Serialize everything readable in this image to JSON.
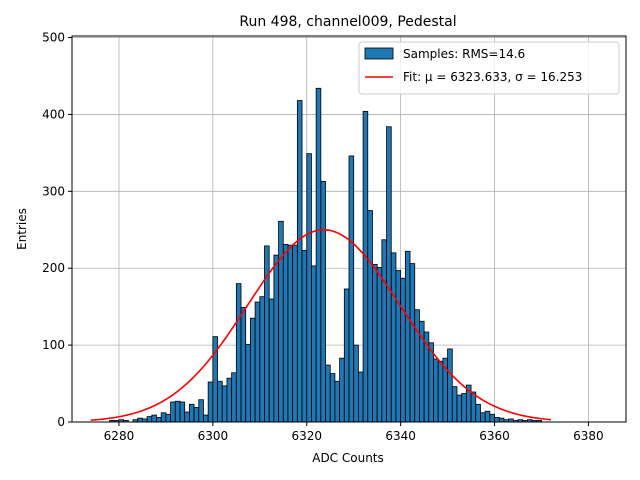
{
  "chart_data": {
    "type": "bar",
    "title": "Run 498, channel009, Pedestal",
    "xlabel": "ADC Counts",
    "ylabel": "Entries",
    "xlim": [
      6270,
      6388
    ],
    "ylim": [
      0,
      502
    ],
    "xticks": [
      6280,
      6300,
      6320,
      6340,
      6360,
      6380
    ],
    "yticks": [
      0,
      100,
      200,
      300,
      400,
      500
    ],
    "grid": true,
    "legend_position": "top-right",
    "bin_start": 6274,
    "bin_width": 1,
    "counts": [
      0,
      0,
      0,
      0,
      2,
      2,
      3,
      2,
      0,
      3,
      5,
      4,
      7,
      9,
      6,
      12,
      10,
      26,
      27,
      26,
      13,
      23,
      19,
      29,
      9,
      52,
      111,
      53,
      47,
      57,
      64,
      180,
      149,
      101,
      135,
      156,
      163,
      229,
      160,
      217,
      261,
      231,
      230,
      230,
      418,
      223,
      349,
      203,
      434,
      313,
      74,
      63,
      53,
      83,
      173,
      346,
      100,
      65,
      404,
      275,
      205,
      201,
      237,
      384,
      220,
      197,
      187,
      222,
      206,
      146,
      131,
      117,
      103,
      82,
      79,
      83,
      95,
      46,
      35,
      37,
      48,
      39,
      23,
      12,
      14,
      10,
      6,
      5,
      3,
      4,
      2,
      3,
      2,
      3,
      2,
      2
    ],
    "fit": {
      "mu": 6323.633,
      "sigma": 16.253,
      "amplitude": 250,
      "x_range": [
        6274,
        6372
      ]
    },
    "series": [
      {
        "name": "Samples: RMS=14.6",
        "kind": "histogram",
        "color": "#1f77b4",
        "edge": "#000000"
      },
      {
        "name": "Fit: μ = 6323.633, σ = 16.253",
        "kind": "line",
        "color": "#ff0000"
      }
    ]
  }
}
